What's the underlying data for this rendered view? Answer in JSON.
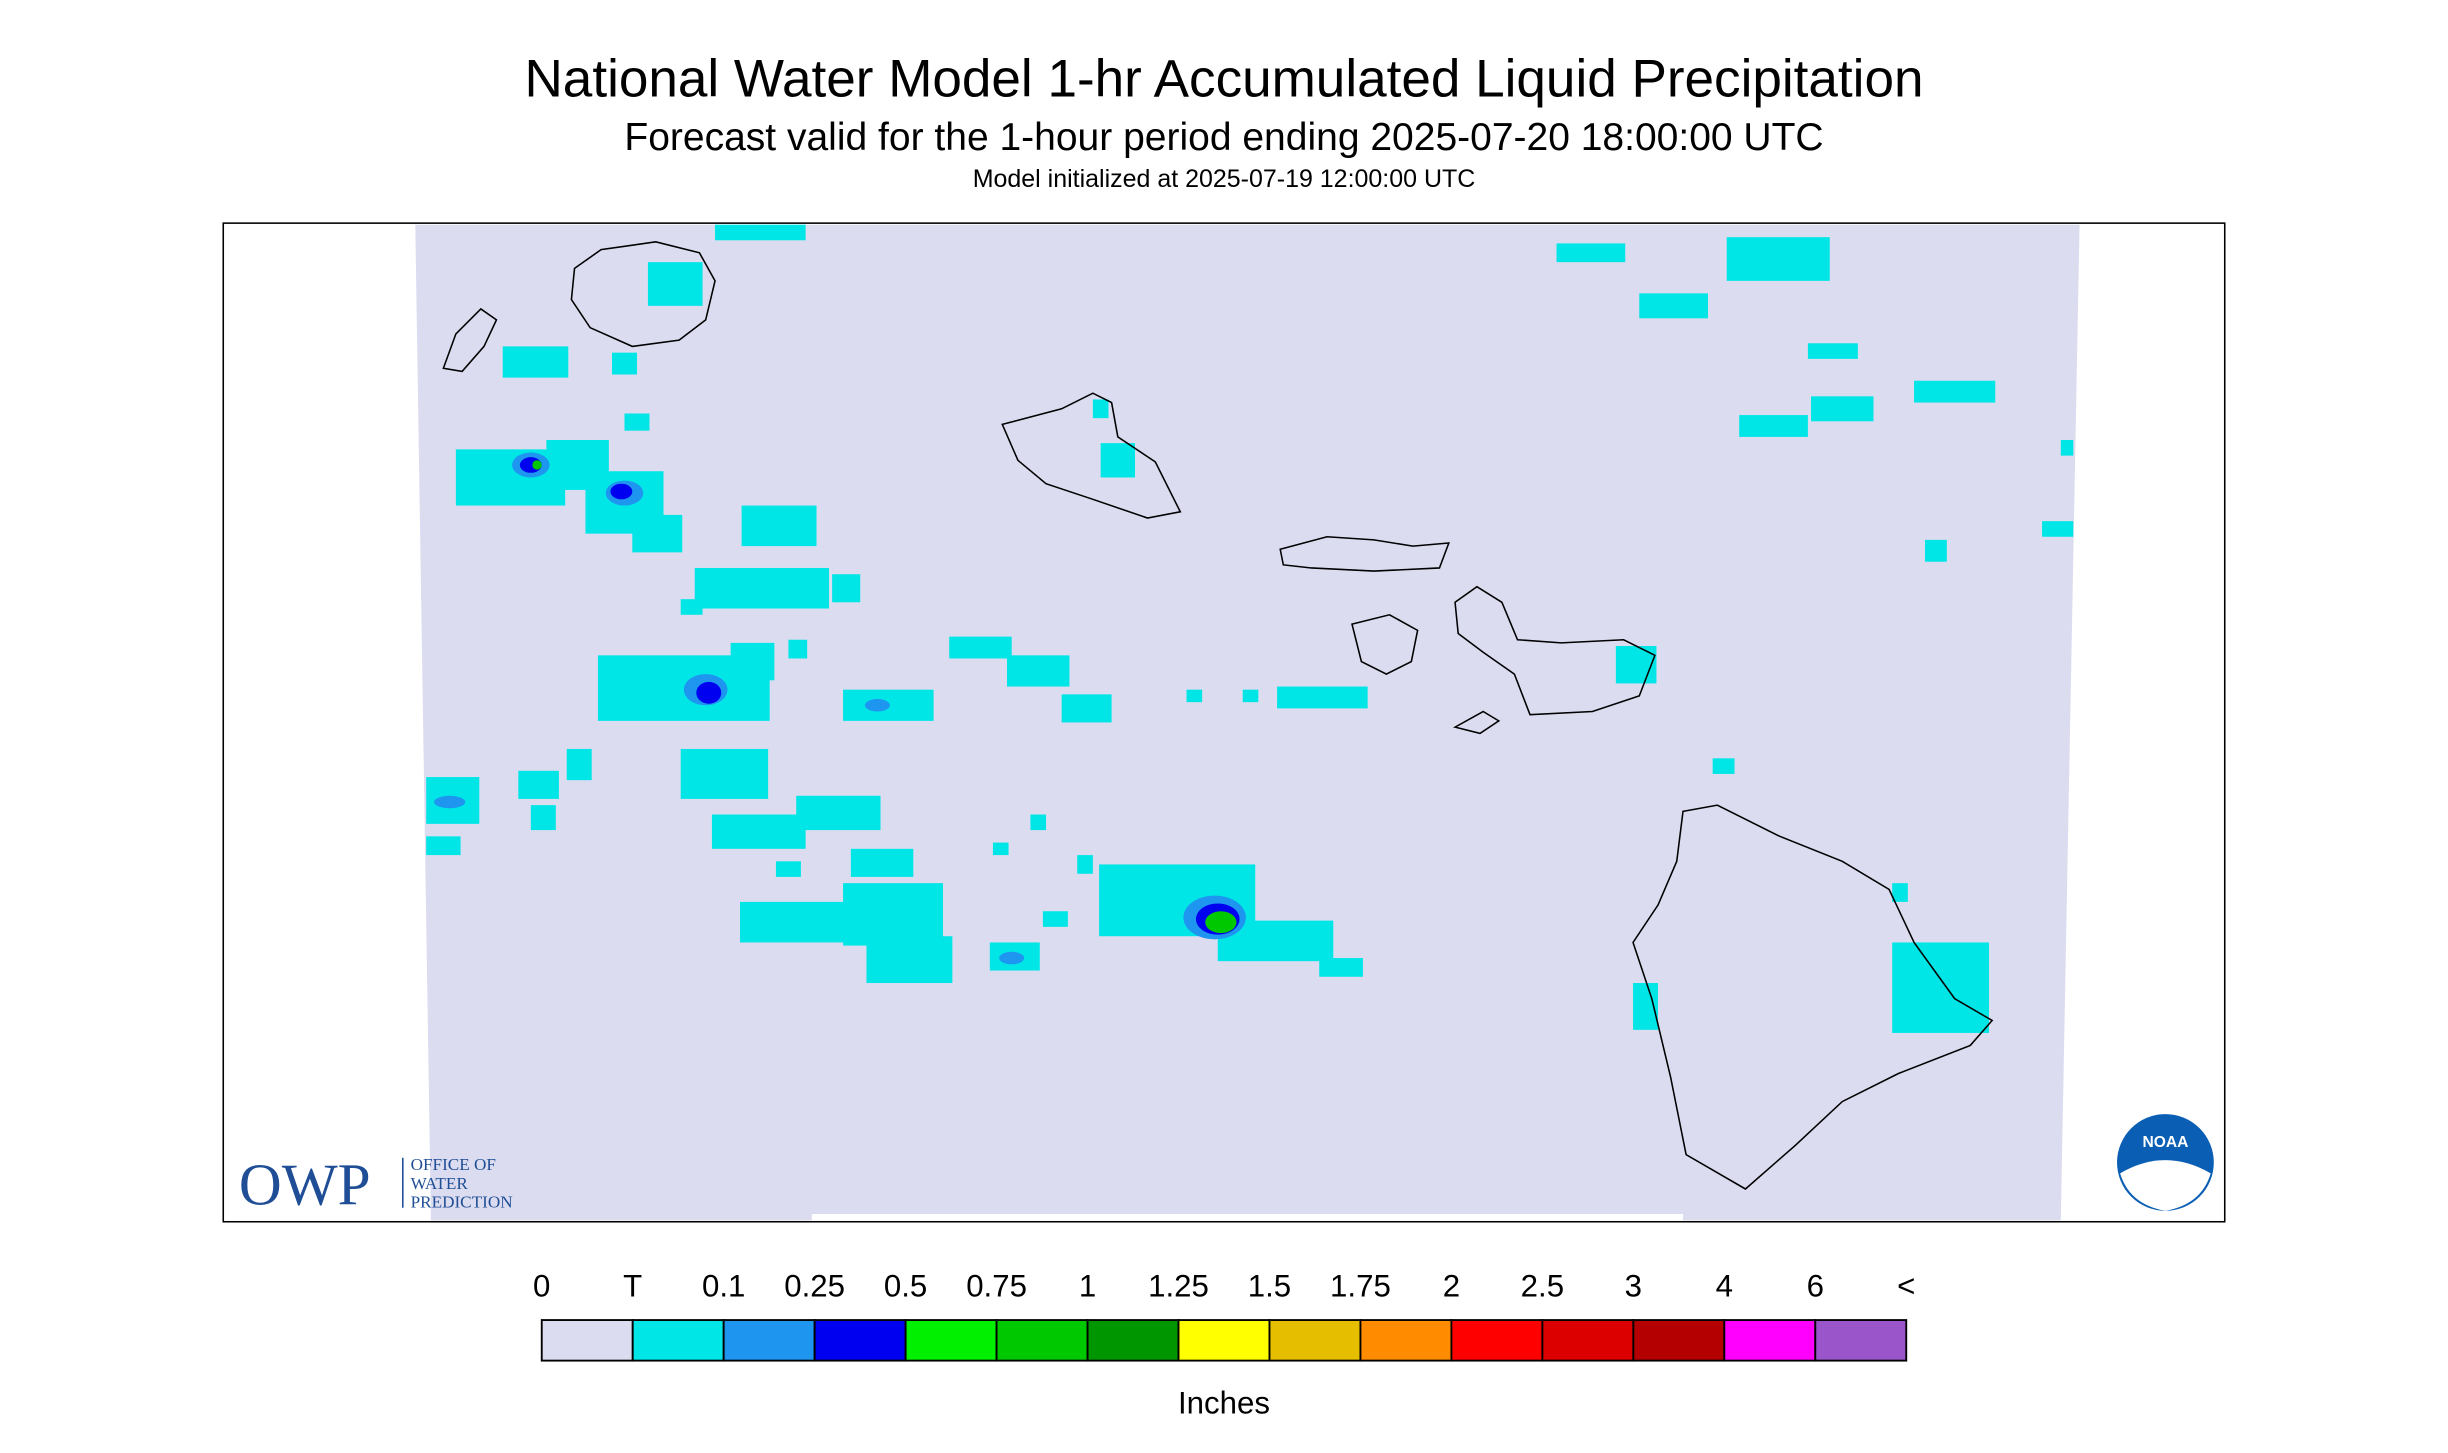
{
  "header": {
    "title": "National Water Model 1-hr Accumulated Liquid Precipitation",
    "subtitle": "Forecast valid for the 1-hour period ending 2025-07-20 18:00:00 UTC",
    "initialized": "Model initialized at 2025-07-19 12:00:00 UTC"
  },
  "logos": {
    "owp": "OWP",
    "owp_lines": [
      "OFFICE OF",
      "WATER",
      "PREDICTION"
    ],
    "noaa": "NOAA"
  },
  "legend": {
    "labels": [
      "0",
      "T",
      "0.1",
      "0.25",
      "0.5",
      "0.75",
      "1",
      "1.25",
      "1.5",
      "1.75",
      "2",
      "2.5",
      "3",
      "4",
      "6",
      "<"
    ],
    "colors": [
      "#dcdcf0",
      "#00e6e6",
      "#1e96f0",
      "#0000f0",
      "#00f000",
      "#00c800",
      "#009600",
      "#ffff00",
      "#e6be00",
      "#ff8c00",
      "#ff0000",
      "#dc0000",
      "#b40000",
      "#ff00ff",
      "#9955c9"
    ],
    "unit": "Inches"
  }
}
